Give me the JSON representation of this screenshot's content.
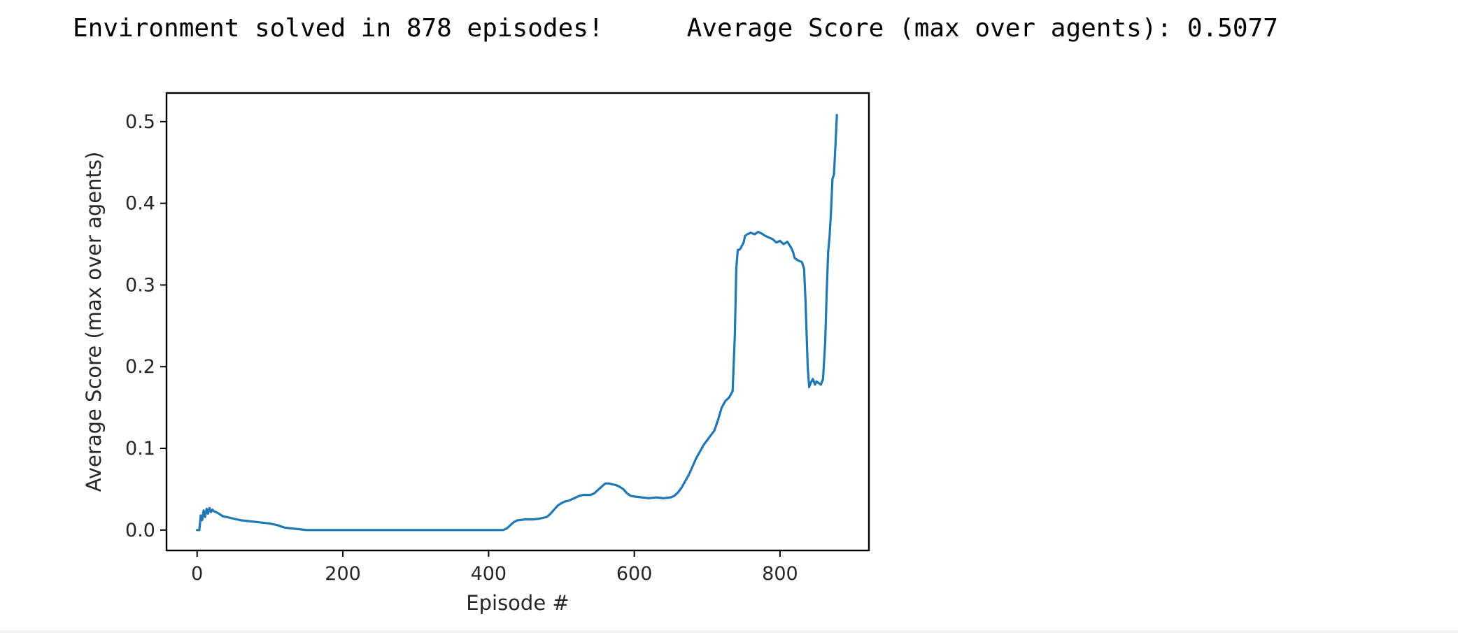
{
  "output": {
    "message": "Environment solved in 878 episodes!",
    "score_line": "Average Score (max over agents): 0.5077"
  },
  "chart_data": {
    "type": "line",
    "title": "",
    "xlabel": "Episode #",
    "ylabel": "Average Score (max over agents)",
    "xlim": [
      -42,
      922
    ],
    "ylim": [
      -0.025,
      0.535
    ],
    "xticks": [
      0,
      200,
      400,
      600,
      800
    ],
    "yticks": [
      0.0,
      0.1,
      0.2,
      0.3,
      0.4,
      0.5
    ],
    "grid": false,
    "line_color": "#1f77b4",
    "series": [
      {
        "x": [
          0,
          3,
          5,
          7,
          9,
          11,
          13,
          15,
          17,
          19,
          21,
          23,
          26,
          30,
          35,
          40,
          50,
          60,
          70,
          80,
          90,
          100,
          110,
          120,
          130,
          140,
          150,
          200,
          300,
          400,
          420,
          425,
          430,
          435,
          440,
          450,
          460,
          470,
          480,
          485,
          490,
          495,
          500,
          505,
          510,
          515,
          520,
          525,
          530,
          540,
          545,
          550,
          555,
          560,
          565,
          570,
          575,
          580,
          585,
          590,
          595,
          600,
          610,
          620,
          630,
          640,
          650,
          655,
          660,
          665,
          670,
          675,
          680,
          685,
          690,
          695,
          700,
          705,
          710,
          715,
          720,
          725,
          730,
          735,
          738,
          740,
          742,
          744,
          746,
          750,
          752,
          755,
          760,
          765,
          770,
          775,
          780,
          785,
          790,
          795,
          800,
          805,
          810,
          815,
          818,
          820,
          825,
          830,
          833,
          835,
          838,
          840,
          842,
          845,
          848,
          850,
          853,
          856,
          859,
          862,
          864,
          866,
          868,
          870,
          872,
          874,
          876,
          878
        ],
        "y": [
          0.0,
          0.0,
          0.018,
          0.012,
          0.024,
          0.016,
          0.026,
          0.02,
          0.027,
          0.022,
          0.025,
          0.023,
          0.022,
          0.02,
          0.017,
          0.016,
          0.014,
          0.012,
          0.011,
          0.01,
          0.009,
          0.008,
          0.006,
          0.003,
          0.002,
          0.001,
          0.0,
          0.0,
          0.0,
          0.0,
          0.0,
          0.002,
          0.006,
          0.01,
          0.012,
          0.013,
          0.013,
          0.014,
          0.016,
          0.02,
          0.025,
          0.03,
          0.033,
          0.035,
          0.036,
          0.038,
          0.04,
          0.042,
          0.043,
          0.043,
          0.045,
          0.049,
          0.053,
          0.057,
          0.057,
          0.056,
          0.055,
          0.053,
          0.05,
          0.045,
          0.042,
          0.041,
          0.04,
          0.039,
          0.04,
          0.039,
          0.04,
          0.042,
          0.046,
          0.052,
          0.06,
          0.068,
          0.078,
          0.088,
          0.096,
          0.104,
          0.11,
          0.116,
          0.122,
          0.135,
          0.15,
          0.158,
          0.162,
          0.17,
          0.24,
          0.32,
          0.343,
          0.343,
          0.345,
          0.352,
          0.36,
          0.362,
          0.364,
          0.362,
          0.365,
          0.363,
          0.36,
          0.358,
          0.356,
          0.352,
          0.354,
          0.35,
          0.353,
          0.346,
          0.34,
          0.333,
          0.33,
          0.328,
          0.32,
          0.28,
          0.2,
          0.175,
          0.18,
          0.185,
          0.178,
          0.182,
          0.18,
          0.178,
          0.185,
          0.23,
          0.29,
          0.34,
          0.36,
          0.39,
          0.43,
          0.435,
          0.47,
          0.508
        ]
      }
    ]
  }
}
